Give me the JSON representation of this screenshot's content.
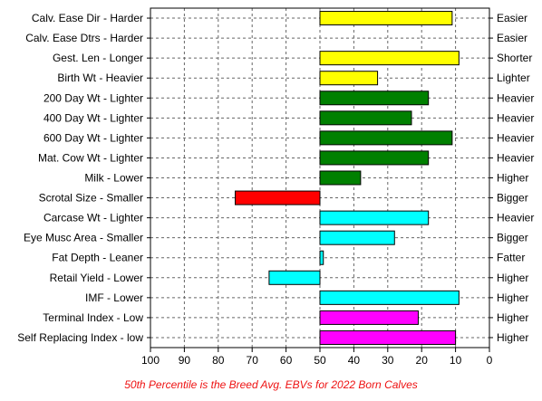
{
  "chart_data": {
    "type": "bar",
    "orientation": "horizontal",
    "categories": [
      "Calv. Ease Dir - Harder",
      "Calv. Ease Dtrs - Harder",
      "Gest. Len - Longer",
      "Birth Wt - Heavier",
      "200 Day Wt - Lighter",
      "400 Day Wt - Lighter",
      "600 Day Wt - Lighter",
      "Mat. Cow Wt - Lighter",
      "Milk - Lower",
      "Scrotal Size - Smaller",
      "Carcase Wt - Lighter",
      "Eye Musc Area - Smaller",
      "Fat Depth - Leaner",
      "Retail Yield - Lower",
      "IMF - Lower",
      "Terminal Index - Low",
      "Self Replacing Index - low"
    ],
    "right_labels": [
      "Easier",
      "Easier",
      "Shorter",
      "Lighter",
      "Heavier",
      "Heavier",
      "Heavier",
      "Heavier",
      "Higher",
      "Bigger",
      "Heavier",
      "Bigger",
      "Fatter",
      "Higher",
      "Higher",
      "Higher",
      "Higher"
    ],
    "values": [
      11,
      null,
      9,
      33,
      18,
      23,
      11,
      18,
      38,
      75,
      18,
      28,
      49,
      65,
      9,
      21,
      10
    ],
    "bar_colors": [
      "#ffff00",
      "#ffff00",
      "#ffff00",
      "#ffff00",
      "#008000",
      "#008000",
      "#008000",
      "#008000",
      "#008000",
      "#ff0000",
      "#00ffff",
      "#00ffff",
      "#00ffff",
      "#00ffff",
      "#00ffff",
      "#ff00ff",
      "#ff00ff"
    ],
    "baseline": 50,
    "xlim": [
      100,
      0
    ],
    "x_ticks": [
      100,
      90,
      80,
      70,
      60,
      50,
      40,
      30,
      20,
      10,
      0
    ],
    "x_reversed": true,
    "grid": true,
    "grid_style": "dashed",
    "caption": "50th Percentile is the Breed Avg. EBVs for 2022 Born Calves",
    "caption_color": "#ee1111"
  }
}
